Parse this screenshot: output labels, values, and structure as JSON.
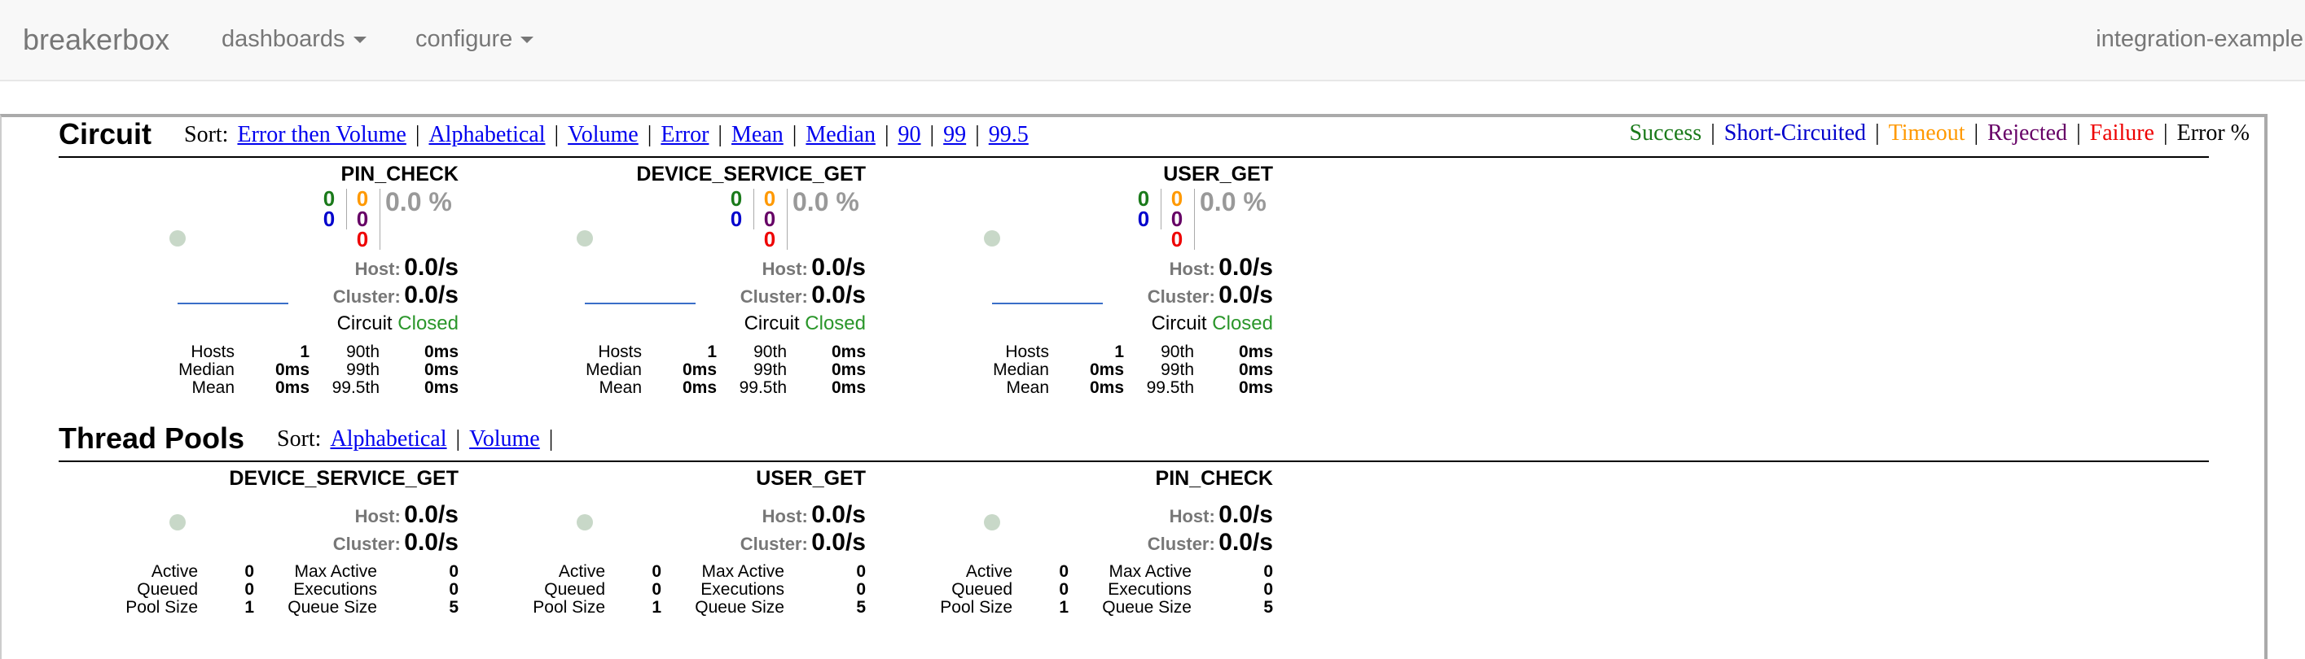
{
  "navbar": {
    "brand": "breakerbox",
    "dashboards": "dashboards",
    "configure": "configure",
    "environment": "integration-example"
  },
  "circuit_section": {
    "title": "Circuit",
    "sort_label": "Sort:",
    "sort_options": [
      "Error then Volume",
      "Alphabetical",
      "Volume",
      "Error",
      "Mean",
      "Median",
      "90",
      "99",
      "99.5"
    ],
    "legend": [
      {
        "label": "Success",
        "color": "#1a7a1a"
      },
      {
        "label": "Short-Circuited",
        "color": "#0000cc"
      },
      {
        "label": "Timeout",
        "color": "#ff9900"
      },
      {
        "label": "Rejected",
        "color": "#660066"
      },
      {
        "label": "Failure",
        "color": "#ee0000"
      },
      {
        "label": "Error %",
        "color": "#000000"
      }
    ],
    "cards": [
      {
        "name": "PIN_CHECK",
        "success": "0",
        "short_circuited": "0",
        "timeout": "0",
        "rejected": "0",
        "failure": "0",
        "error_pct": "0.0 %",
        "host_label": "Host:",
        "host_rate": "0.0/s",
        "cluster_label": "Cluster:",
        "cluster_rate": "0.0/s",
        "circuit_label": "Circuit",
        "circuit_status": "Closed",
        "hosts_label": "Hosts",
        "hosts": "1",
        "median_label": "Median",
        "median": "0ms",
        "mean_label": "Mean",
        "mean": "0ms",
        "p90_label": "90th",
        "p90": "0ms",
        "p99_label": "99th",
        "p99": "0ms",
        "p995_label": "99.5th",
        "p995": "0ms"
      },
      {
        "name": "DEVICE_SERVICE_GET",
        "success": "0",
        "short_circuited": "0",
        "timeout": "0",
        "rejected": "0",
        "failure": "0",
        "error_pct": "0.0 %",
        "host_label": "Host:",
        "host_rate": "0.0/s",
        "cluster_label": "Cluster:",
        "cluster_rate": "0.0/s",
        "circuit_label": "Circuit",
        "circuit_status": "Closed",
        "hosts_label": "Hosts",
        "hosts": "1",
        "median_label": "Median",
        "median": "0ms",
        "mean_label": "Mean",
        "mean": "0ms",
        "p90_label": "90th",
        "p90": "0ms",
        "p99_label": "99th",
        "p99": "0ms",
        "p995_label": "99.5th",
        "p995": "0ms"
      },
      {
        "name": "USER_GET",
        "success": "0",
        "short_circuited": "0",
        "timeout": "0",
        "rejected": "0",
        "failure": "0",
        "error_pct": "0.0 %",
        "host_label": "Host:",
        "host_rate": "0.0/s",
        "cluster_label": "Cluster:",
        "cluster_rate": "0.0/s",
        "circuit_label": "Circuit",
        "circuit_status": "Closed",
        "hosts_label": "Hosts",
        "hosts": "1",
        "median_label": "Median",
        "median": "0ms",
        "mean_label": "Mean",
        "mean": "0ms",
        "p90_label": "90th",
        "p90": "0ms",
        "p99_label": "99th",
        "p99": "0ms",
        "p995_label": "99.5th",
        "p995": "0ms"
      }
    ]
  },
  "thread_section": {
    "title": "Thread Pools",
    "sort_label": "Sort:",
    "sort_options": [
      "Alphabetical",
      "Volume"
    ],
    "cards": [
      {
        "name": "DEVICE_SERVICE_GET",
        "host_label": "Host:",
        "host_rate": "0.0/s",
        "cluster_label": "Cluster:",
        "cluster_rate": "0.0/s",
        "active_label": "Active",
        "active": "0",
        "queued_label": "Queued",
        "queued": "0",
        "pool_size_label": "Pool Size",
        "pool_size": "1",
        "max_active_label": "Max Active",
        "max_active": "0",
        "executions_label": "Executions",
        "executions": "0",
        "queue_size_label": "Queue Size",
        "queue_size": "5"
      },
      {
        "name": "USER_GET",
        "host_label": "Host:",
        "host_rate": "0.0/s",
        "cluster_label": "Cluster:",
        "cluster_rate": "0.0/s",
        "active_label": "Active",
        "active": "0",
        "queued_label": "Queued",
        "queued": "0",
        "pool_size_label": "Pool Size",
        "pool_size": "1",
        "max_active_label": "Max Active",
        "max_active": "0",
        "executions_label": "Executions",
        "executions": "0",
        "queue_size_label": "Queue Size",
        "queue_size": "5"
      },
      {
        "name": "PIN_CHECK",
        "host_label": "Host:",
        "host_rate": "0.0/s",
        "cluster_label": "Cluster:",
        "cluster_rate": "0.0/s",
        "active_label": "Active",
        "active": "0",
        "queued_label": "Queued",
        "queued": "0",
        "pool_size_label": "Pool Size",
        "pool_size": "1",
        "max_active_label": "Max Active",
        "max_active": "0",
        "executions_label": "Executions",
        "executions": "0",
        "queue_size_label": "Queue Size",
        "queue_size": "5"
      }
    ]
  }
}
